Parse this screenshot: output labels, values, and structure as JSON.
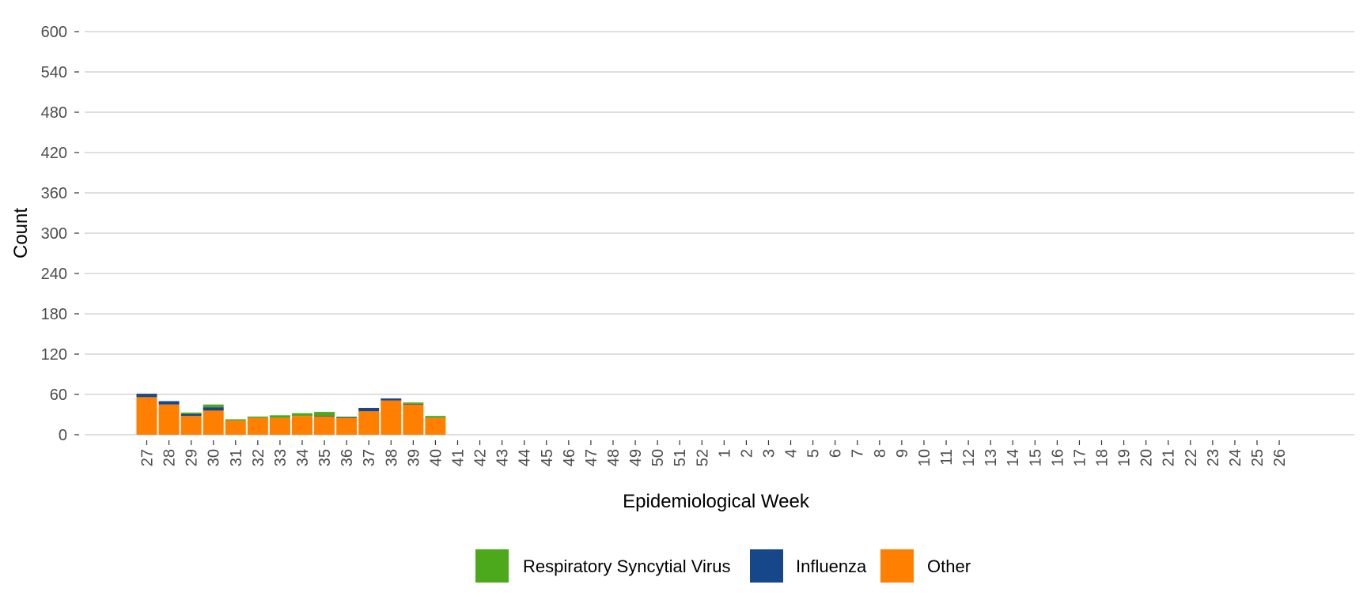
{
  "chart_data": {
    "type": "bar",
    "stacked": true,
    "title": "",
    "xlabel": "Epidemiological Week",
    "ylabel": "Count",
    "ylim": [
      0,
      600
    ],
    "yticks": [
      0,
      60,
      120,
      180,
      240,
      300,
      360,
      420,
      480,
      540,
      600
    ],
    "grid": "horizontal",
    "legend_position": "bottom",
    "categories": [
      "27",
      "28",
      "29",
      "30",
      "31",
      "32",
      "33",
      "34",
      "35",
      "36",
      "37",
      "38",
      "39",
      "40",
      "41",
      "42",
      "43",
      "44",
      "45",
      "46",
      "47",
      "48",
      "49",
      "50",
      "51",
      "52",
      "1",
      "2",
      "3",
      "4",
      "5",
      "6",
      "7",
      "8",
      "9",
      "10",
      "11",
      "12",
      "13",
      "14",
      "15",
      "16",
      "17",
      "18",
      "19",
      "20",
      "21",
      "22",
      "23",
      "24",
      "25",
      "26"
    ],
    "series": [
      {
        "name": "Other",
        "color": "#FF7F00",
        "values": [
          56,
          45,
          28,
          36,
          21,
          25,
          25,
          28,
          27,
          25,
          35,
          51,
          45,
          25,
          0,
          0,
          0,
          0,
          0,
          0,
          0,
          0,
          0,
          0,
          0,
          0,
          0,
          0,
          0,
          0,
          0,
          0,
          0,
          0,
          0,
          0,
          0,
          0,
          0,
          0,
          0,
          0,
          0,
          0,
          0,
          0,
          0,
          0,
          0,
          0,
          0,
          0
        ]
      },
      {
        "name": "Influenza",
        "color": "#15478A",
        "values": [
          5,
          5,
          3,
          5,
          0,
          0,
          0,
          0,
          1,
          1,
          5,
          3,
          1,
          0,
          0,
          0,
          0,
          0,
          0,
          0,
          0,
          0,
          0,
          0,
          0,
          0,
          0,
          0,
          0,
          0,
          0,
          0,
          0,
          0,
          0,
          0,
          0,
          0,
          0,
          0,
          0,
          0,
          0,
          0,
          0,
          0,
          0,
          0,
          0,
          0,
          0,
          0
        ]
      },
      {
        "name": "Respiratory Syncytial Virus",
        "color": "#4DA91C",
        "values": [
          0,
          0,
          2,
          4,
          2,
          2,
          4,
          4,
          6,
          1,
          0,
          0,
          2,
          3,
          0,
          0,
          0,
          0,
          0,
          0,
          0,
          0,
          0,
          0,
          0,
          0,
          0,
          0,
          0,
          0,
          0,
          0,
          0,
          0,
          0,
          0,
          0,
          0,
          0,
          0,
          0,
          0,
          0,
          0,
          0,
          0,
          0,
          0,
          0,
          0,
          0,
          0
        ]
      }
    ],
    "legend": [
      {
        "label": "Respiratory Syncytial Virus",
        "color": "#4DA91C"
      },
      {
        "label": "Influenza",
        "color": "#15478A"
      },
      {
        "label": "Other",
        "color": "#FF7F00"
      }
    ]
  }
}
